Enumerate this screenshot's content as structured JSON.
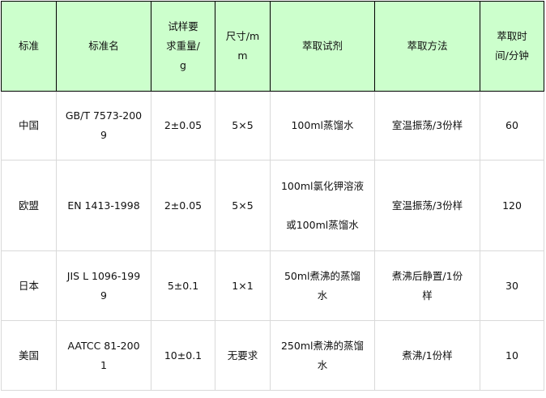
{
  "header_bg": "#ccffcc",
  "headers": [
    "标准",
    "标准名",
    "试样要\n求重量/\ng",
    "尺寸/m\nm",
    "萃取试剂",
    "萃取方法",
    "萃取时\n间/分钟"
  ],
  "rows": [
    [
      "中国",
      "GB/T 7573-200\n9",
      "2±0.05",
      "5×5",
      "100ml蒸馏水",
      "室温振荡/3份样",
      "60"
    ],
    [
      "欧盟",
      "EN 1413-1998",
      "2±0.05",
      "5×5",
      "100ml氯化钾溶液\n\n或100ml蒸馏水",
      "室温振荡/3份样",
      "120"
    ],
    [
      "日本",
      "JIS L 1096-199\n9",
      "5±0.1",
      "1×1",
      "50ml煮沸的蒸馏\n水",
      "煮沸后静置/1份\n样",
      "30"
    ],
    [
      "美国",
      "AATCC 81-200\n1",
      "10±0.1",
      "无要求",
      "250ml煮沸的蒸馏\n水",
      "煮沸/1份样",
      "10"
    ]
  ]
}
